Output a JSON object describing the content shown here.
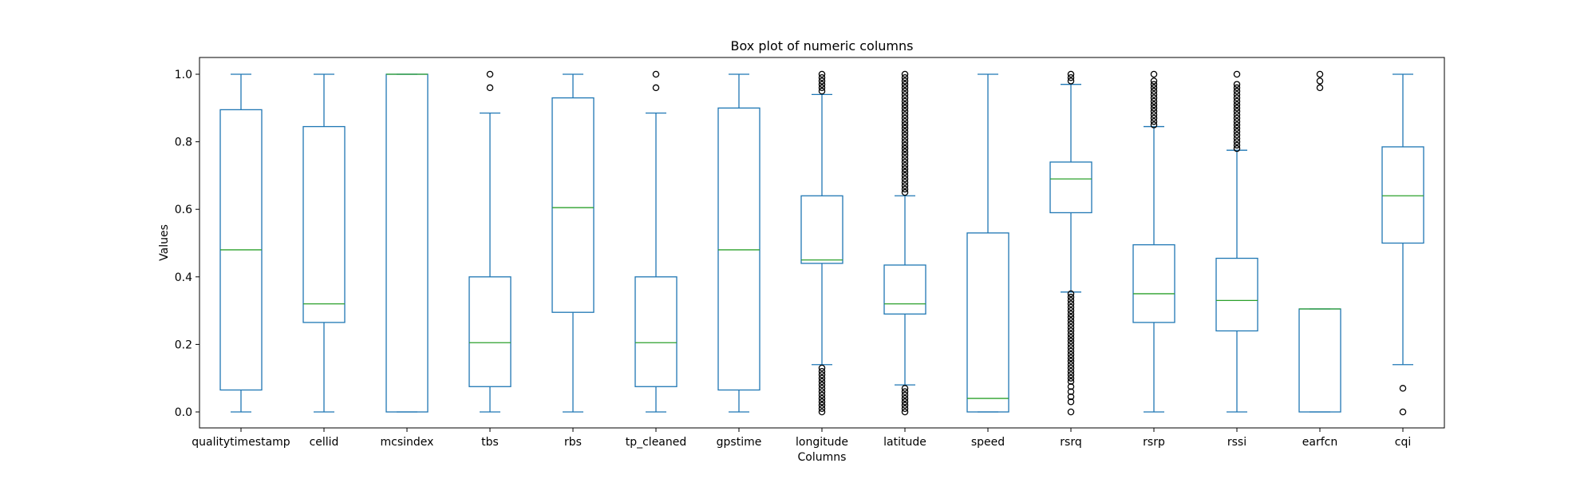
{
  "chart_data": {
    "type": "box",
    "title": "Box plot of numeric columns",
    "xlabel": "Columns",
    "ylabel": "Values",
    "ylim": [
      -0.05,
      1.05
    ],
    "yticks": [
      "0.0",
      "0.2",
      "0.4",
      "0.6",
      "0.8",
      "1.0"
    ],
    "ytick_values": [
      0.0,
      0.2,
      0.4,
      0.6,
      0.8,
      1.0
    ],
    "grid": false,
    "colors": {
      "box": "#1f77b4",
      "median": "#2ca02c",
      "flier": "#000000"
    },
    "boxes": [
      {
        "name": "qualitytimestamp",
        "whisker_low": 0.0,
        "q1": 0.065,
        "median": 0.48,
        "q3": 0.895,
        "whisker_high": 1.0,
        "fliers": []
      },
      {
        "name": "cellid",
        "whisker_low": 0.0,
        "q1": 0.265,
        "median": 0.32,
        "q3": 0.845,
        "whisker_high": 1.0,
        "fliers": []
      },
      {
        "name": "mcsindex",
        "whisker_low": 0.0,
        "q1": 0.0,
        "median": 1.0,
        "q3": 1.0,
        "whisker_high": 1.0,
        "fliers": []
      },
      {
        "name": "tbs",
        "whisker_low": 0.0,
        "q1": 0.075,
        "median": 0.205,
        "q3": 0.4,
        "whisker_high": 0.885,
        "fliers": [
          0.96,
          1.0
        ]
      },
      {
        "name": "rbs",
        "whisker_low": 0.0,
        "q1": 0.295,
        "median": 0.605,
        "q3": 0.93,
        "whisker_high": 1.0,
        "fliers": []
      },
      {
        "name": "tp_cleaned",
        "whisker_low": 0.0,
        "q1": 0.075,
        "median": 0.205,
        "q3": 0.4,
        "whisker_high": 0.885,
        "fliers": [
          0.96,
          1.0
        ]
      },
      {
        "name": "gpstime",
        "whisker_low": 0.0,
        "q1": 0.065,
        "median": 0.48,
        "q3": 0.9,
        "whisker_high": 1.0,
        "fliers": []
      },
      {
        "name": "longitude",
        "whisker_low": 0.14,
        "q1": 0.44,
        "median": 0.45,
        "q3": 0.64,
        "whisker_high": 0.94,
        "fliers": [
          0.0,
          0.01,
          0.02,
          0.03,
          0.04,
          0.05,
          0.06,
          0.07,
          0.08,
          0.09,
          0.1,
          0.11,
          0.12,
          0.13,
          0.95,
          0.96,
          0.97,
          0.98,
          0.99,
          1.0
        ]
      },
      {
        "name": "latitude",
        "whisker_low": 0.08,
        "q1": 0.29,
        "median": 0.32,
        "q3": 0.435,
        "whisker_high": 0.64,
        "fliers": [
          0.0,
          0.01,
          0.02,
          0.03,
          0.04,
          0.05,
          0.06,
          0.07,
          0.65,
          0.66,
          0.67,
          0.68,
          0.69,
          0.7,
          0.71,
          0.72,
          0.73,
          0.74,
          0.75,
          0.76,
          0.77,
          0.78,
          0.79,
          0.8,
          0.81,
          0.82,
          0.83,
          0.84,
          0.85,
          0.86,
          0.87,
          0.88,
          0.89,
          0.9,
          0.91,
          0.92,
          0.93,
          0.94,
          0.95,
          0.96,
          0.97,
          0.98,
          0.99,
          1.0
        ]
      },
      {
        "name": "speed",
        "whisker_low": 0.0,
        "q1": 0.0,
        "median": 0.04,
        "q3": 0.53,
        "whisker_high": 1.0,
        "fliers": []
      },
      {
        "name": "rsrq",
        "whisker_low": 0.355,
        "q1": 0.59,
        "median": 0.69,
        "q3": 0.74,
        "whisker_high": 0.97,
        "fliers": [
          0.0,
          0.03,
          0.045,
          0.06,
          0.075,
          0.09,
          0.1,
          0.11,
          0.12,
          0.13,
          0.14,
          0.15,
          0.16,
          0.17,
          0.18,
          0.19,
          0.2,
          0.21,
          0.22,
          0.23,
          0.24,
          0.25,
          0.26,
          0.27,
          0.28,
          0.29,
          0.3,
          0.31,
          0.32,
          0.33,
          0.34,
          0.35,
          0.98,
          0.99,
          1.0
        ]
      },
      {
        "name": "rsrp",
        "whisker_low": 0.0,
        "q1": 0.265,
        "median": 0.35,
        "q3": 0.495,
        "whisker_high": 0.845,
        "fliers": [
          0.85,
          0.86,
          0.87,
          0.88,
          0.89,
          0.9,
          0.91,
          0.92,
          0.93,
          0.94,
          0.95,
          0.96,
          0.97,
          0.98,
          1.0
        ]
      },
      {
        "name": "rssi",
        "whisker_low": 0.0,
        "q1": 0.24,
        "median": 0.33,
        "q3": 0.455,
        "whisker_high": 0.775,
        "fliers": [
          0.78,
          0.79,
          0.8,
          0.81,
          0.82,
          0.83,
          0.84,
          0.85,
          0.86,
          0.87,
          0.88,
          0.89,
          0.9,
          0.91,
          0.92,
          0.93,
          0.94,
          0.95,
          0.96,
          0.97,
          1.0
        ]
      },
      {
        "name": "earfcn",
        "whisker_low": 0.0,
        "q1": 0.0,
        "median": 0.305,
        "q3": 0.305,
        "whisker_high": 0.305,
        "fliers": [
          0.96,
          0.98,
          1.0
        ]
      },
      {
        "name": "cqi",
        "whisker_low": 0.14,
        "q1": 0.5,
        "median": 0.64,
        "q3": 0.785,
        "whisker_high": 1.0,
        "fliers": [
          0.0,
          0.07
        ]
      }
    ]
  }
}
